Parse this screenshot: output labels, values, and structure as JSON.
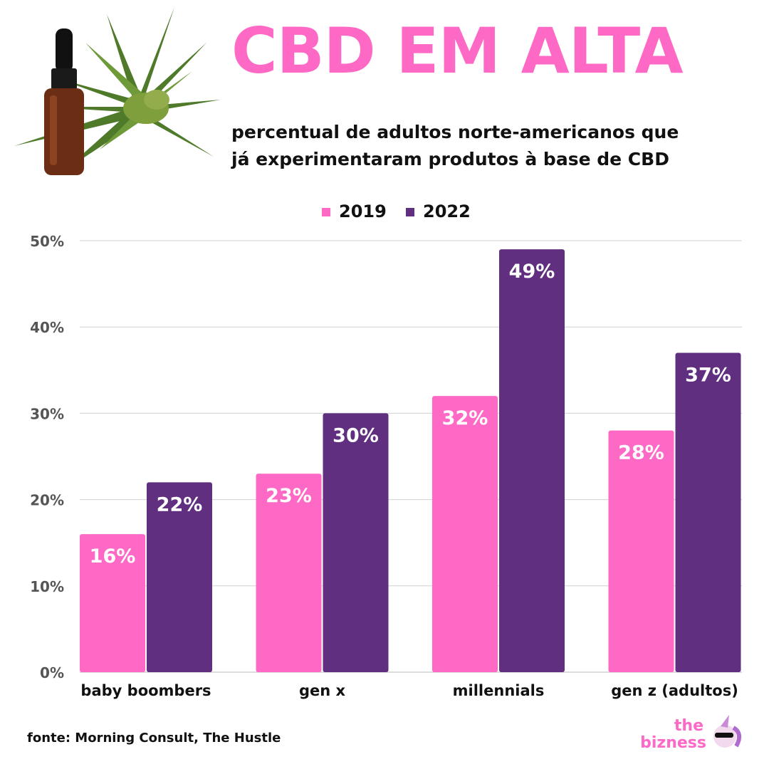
{
  "header": {
    "title": "CBD EM ALTA",
    "subtitle_line1": "percentual de adultos norte-americanos que",
    "subtitle_line2": "já experimentaram produtos à base de CBD"
  },
  "footer": {
    "source": "fonte: Morning Consult, The Hustle",
    "brand_top": "the",
    "brand_bottom": "bizness"
  },
  "colors": {
    "series_2019": "#ff69c6",
    "series_2022": "#612f80",
    "title": "#ff69c6",
    "grid": "#d0d0d0",
    "tick_label": "#555555"
  },
  "chart_data": {
    "type": "bar",
    "title": "CBD EM ALTA",
    "subtitle": "percentual de adultos norte-americanos que já experimentaram produtos à base de CBD",
    "categories": [
      "baby boombers",
      "gen x",
      "millennials",
      "gen z (adultos)"
    ],
    "series": [
      {
        "name": "2019",
        "values": [
          16,
          23,
          32,
          28
        ],
        "labels": [
          "16%",
          "23%",
          "32%",
          "28%"
        ]
      },
      {
        "name": "2022",
        "values": [
          22,
          30,
          49,
          37
        ],
        "labels": [
          "22%",
          "30%",
          "49%",
          "37%"
        ]
      }
    ],
    "yticks": [
      0,
      10,
      20,
      30,
      40,
      50
    ],
    "ytick_labels": [
      "0%",
      "10%",
      "20%",
      "30%",
      "40%",
      "50%"
    ],
    "ylim": [
      0,
      50
    ],
    "grid": true,
    "legend_position": "top-center",
    "xlabel": "",
    "ylabel": ""
  }
}
